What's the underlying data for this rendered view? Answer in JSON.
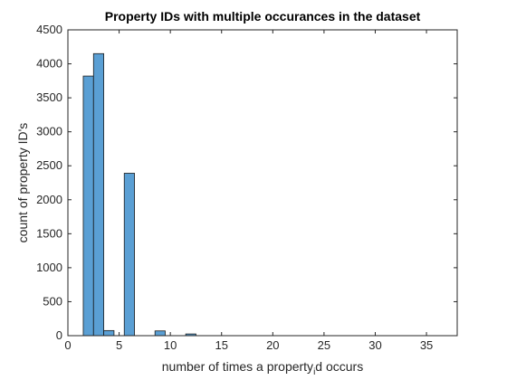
{
  "chart_data": {
    "type": "bar",
    "title": "Property IDs with multiple occurances in the dataset",
    "xlabel_parts": [
      "number of times a property",
      "i",
      "d occurs"
    ],
    "ylabel": "count of property ID's",
    "xlim": [
      0,
      38
    ],
    "ylim": [
      0,
      4500
    ],
    "xticks": [
      0,
      5,
      10,
      15,
      20,
      25,
      30,
      35
    ],
    "yticks": [
      0,
      500,
      1000,
      1500,
      2000,
      2500,
      3000,
      3500,
      4000,
      4500
    ],
    "bin_width": 1,
    "bins": [
      {
        "x": 2,
        "value": 3820
      },
      {
        "x": 3,
        "value": 4150
      },
      {
        "x": 4,
        "value": 75
      },
      {
        "x": 6,
        "value": 2390
      },
      {
        "x": 9,
        "value": 70
      },
      {
        "x": 12,
        "value": 25
      }
    ],
    "bar_color": "#5a9fd4",
    "bar_edge_color": "#1a1a1a",
    "grid": false
  }
}
